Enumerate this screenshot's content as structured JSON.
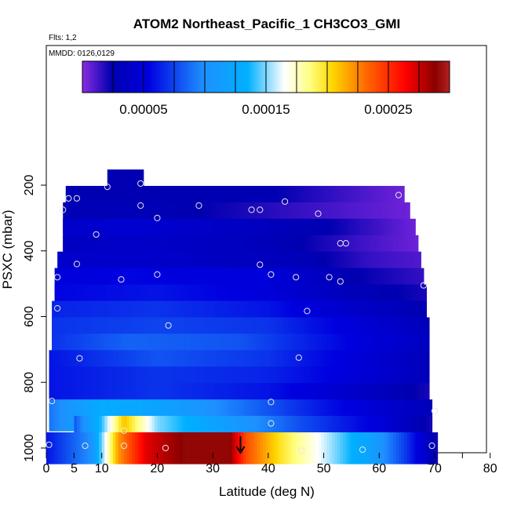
{
  "header": {
    "title": "ATOM2 Northeast_Pacific_1 CH3CO3_GMI",
    "flts": "Flts: 1,2",
    "mmdd": "MMDD: 0126,0129"
  },
  "chart_data": {
    "type": "heatmap",
    "title": "ATOM2 Northeast_Pacific_1 CH3CO3_GMI",
    "xlabel": "Latitude (deg N)",
    "ylabel": "PSXC (mbar)",
    "xlim": [
      0,
      85
    ],
    "ylim": [
      1000,
      100
    ],
    "x_ticks": [
      0,
      5,
      10,
      20,
      30,
      40,
      50,
      60,
      70,
      80
    ],
    "x_minor_ticks": [
      75
    ],
    "y_ticks": [
      200,
      400,
      600,
      800,
      1000
    ],
    "colorbar": {
      "range": [
        0.0,
        0.0003
      ],
      "tick_values": [
        5e-05,
        0.00015,
        0.00025
      ],
      "tick_labels": [
        "0.00005",
        "0.00015",
        "0.00025"
      ],
      "colors": [
        "#8a2be2",
        "#0000cd",
        "#1e90ff",
        "#ffffff",
        "#ffd700",
        "#ff0000",
        "#8b0000",
        "#b22222"
      ]
    },
    "pressure_levels": [
      {
        "p": 200,
        "lat_range": [
          11,
          17.5
        ],
        "profile": [
          [
            11,
            2.5e-05
          ],
          [
            17.5,
            2.5e-05
          ]
        ]
      },
      {
        "p": 250,
        "lat_range": [
          3.5,
          64.5
        ],
        "profile": [
          [
            3.5,
            2.5e-05
          ],
          [
            40,
            2.5e-05
          ],
          [
            52,
            1.5e-05
          ],
          [
            64.5,
            5e-06
          ]
        ]
      },
      {
        "p": 300,
        "lat_range": [
          3,
          65.5
        ],
        "profile": [
          [
            3,
            2.8e-05
          ],
          [
            20,
            2.8e-05
          ],
          [
            45,
            1.5e-05
          ],
          [
            65.5,
            5e-06
          ]
        ]
      },
      {
        "p": 350,
        "lat_range": [
          3,
          66.5
        ],
        "profile": [
          [
            3,
            4e-05
          ],
          [
            15,
            4.5e-05
          ],
          [
            35,
            3.5e-05
          ],
          [
            50,
            2.5e-05
          ],
          [
            66.5,
            5e-06
          ]
        ]
      },
      {
        "p": 400,
        "lat_range": [
          3,
          67
        ],
        "profile": [
          [
            3,
            3.5e-05
          ],
          [
            15,
            4e-05
          ],
          [
            40,
            3e-05
          ],
          [
            55,
            1.5e-05
          ],
          [
            67,
            5e-06
          ]
        ]
      },
      {
        "p": 450,
        "lat_range": [
          2,
          67.5
        ],
        "profile": [
          [
            2,
            4e-05
          ],
          [
            20,
            4e-05
          ],
          [
            45,
            3e-05
          ],
          [
            58,
            1.5e-05
          ],
          [
            67.5,
            1e-05
          ]
        ]
      },
      {
        "p": 500,
        "lat_range": [
          1.5,
          68
        ],
        "profile": [
          [
            1.5,
            5e-05
          ],
          [
            15,
            5.5e-05
          ],
          [
            40,
            5e-05
          ],
          [
            55,
            2.5e-05
          ],
          [
            68,
            1.5e-05
          ]
        ]
      },
      {
        "p": 550,
        "lat_range": [
          1.5,
          68.5
        ],
        "profile": [
          [
            1.5,
            5.5e-05
          ],
          [
            20,
            6e-05
          ],
          [
            40,
            5e-05
          ],
          [
            55,
            3e-05
          ],
          [
            68.5,
            2e-05
          ]
        ]
      },
      {
        "p": 600,
        "lat_range": [
          1,
          68.5
        ],
        "profile": [
          [
            1,
            6.5e-05
          ],
          [
            20,
            7e-05
          ],
          [
            40,
            6e-05
          ],
          [
            55,
            4e-05
          ],
          [
            68.5,
            2.5e-05
          ]
        ]
      },
      {
        "p": 650,
        "lat_range": [
          1,
          69
        ],
        "profile": [
          [
            1,
            7e-05
          ],
          [
            20,
            7.5e-05
          ],
          [
            40,
            7e-05
          ],
          [
            55,
            5e-05
          ],
          [
            69,
            3e-05
          ]
        ]
      },
      {
        "p": 700,
        "lat_range": [
          1,
          69
        ],
        "profile": [
          [
            1,
            7e-05
          ],
          [
            15,
            8.5e-05
          ],
          [
            35,
            8e-05
          ],
          [
            50,
            6e-05
          ],
          [
            69,
            3.5e-05
          ]
        ]
      },
      {
        "p": 750,
        "lat_range": [
          0.5,
          69
        ],
        "profile": [
          [
            0.5,
            6e-05
          ],
          [
            20,
            8e-05
          ],
          [
            40,
            7e-05
          ],
          [
            55,
            5e-05
          ],
          [
            69,
            3e-05
          ]
        ]
      },
      {
        "p": 800,
        "lat_range": [
          0.5,
          69
        ],
        "profile": [
          [
            0.5,
            6e-05
          ],
          [
            20,
            7e-05
          ],
          [
            40,
            6.5e-05
          ],
          [
            55,
            5e-05
          ],
          [
            69,
            3e-05
          ]
        ]
      },
      {
        "p": 850,
        "lat_range": [
          0.5,
          69
        ],
        "profile": [
          [
            0.5,
            6e-05
          ],
          [
            20,
            7e-05
          ],
          [
            40,
            6e-05
          ],
          [
            55,
            4e-05
          ],
          [
            69,
            2e-05
          ]
        ]
      },
      {
        "p": 900,
        "lat_range": [
          0.5,
          69.5
        ],
        "profile": [
          [
            0.5,
            9e-05
          ],
          [
            10,
            0.00013
          ],
          [
            20,
            0.00012
          ],
          [
            35,
            9e-05
          ],
          [
            50,
            6e-05
          ],
          [
            69.5,
            3e-05
          ]
        ]
      },
      {
        "p": 950,
        "lat_range": [
          5,
          69.5
        ],
        "profile": [
          [
            5,
            8e-05
          ],
          [
            10,
            0.00014
          ],
          [
            14,
            0.00021
          ],
          [
            20,
            0.00015
          ],
          [
            30,
            0.00012
          ],
          [
            45,
            8e-05
          ],
          [
            60,
            5e-05
          ],
          [
            69.5,
            2e-05
          ]
        ]
      },
      {
        "p": 1000,
        "lat_range": [
          0,
          70.5
        ],
        "profile": [
          [
            0,
            6e-05
          ],
          [
            8,
            0.0001
          ],
          [
            13,
            0.00022
          ],
          [
            18,
            0.00027
          ],
          [
            25,
            0.00029
          ],
          [
            33,
            0.00029
          ],
          [
            36,
            0.00024
          ],
          [
            42,
            0.0002
          ],
          [
            50,
            0.00016
          ],
          [
            58,
            0.00012
          ],
          [
            65,
            7e-05
          ],
          [
            70.5,
            2e-05
          ]
        ]
      }
    ],
    "observations": [
      [
        11,
        205
      ],
      [
        17,
        195
      ],
      [
        4,
        240
      ],
      [
        5.5,
        240
      ],
      [
        3,
        275
      ],
      [
        17,
        262
      ],
      [
        27.5,
        262
      ],
      [
        37,
        275
      ],
      [
        38.5,
        275
      ],
      [
        43,
        250
      ],
      [
        49,
        287
      ],
      [
        63.5,
        230
      ],
      [
        20,
        300
      ],
      [
        9,
        350
      ],
      [
        53,
        377
      ],
      [
        54,
        377
      ],
      [
        5.5,
        440
      ],
      [
        38.5,
        442
      ],
      [
        2,
        480
      ],
      [
        13.5,
        487
      ],
      [
        20,
        472
      ],
      [
        40.5,
        472
      ],
      [
        45,
        480
      ],
      [
        51,
        480
      ],
      [
        53,
        493
      ],
      [
        68,
        505
      ],
      [
        2,
        575
      ],
      [
        47,
        583
      ],
      [
        22,
        627
      ],
      [
        6,
        727
      ],
      [
        45.5,
        725
      ],
      [
        1,
        857
      ],
      [
        40.5,
        860
      ],
      [
        70,
        887
      ],
      [
        40.5,
        925
      ],
      [
        14,
        947
      ],
      [
        0.5,
        990
      ],
      [
        7,
        993
      ],
      [
        14,
        993
      ],
      [
        21.5,
        1000
      ],
      [
        46,
        1008
      ],
      [
        57,
        1005
      ],
      [
        69.5,
        993
      ]
    ],
    "arrow_latitude": 35
  }
}
